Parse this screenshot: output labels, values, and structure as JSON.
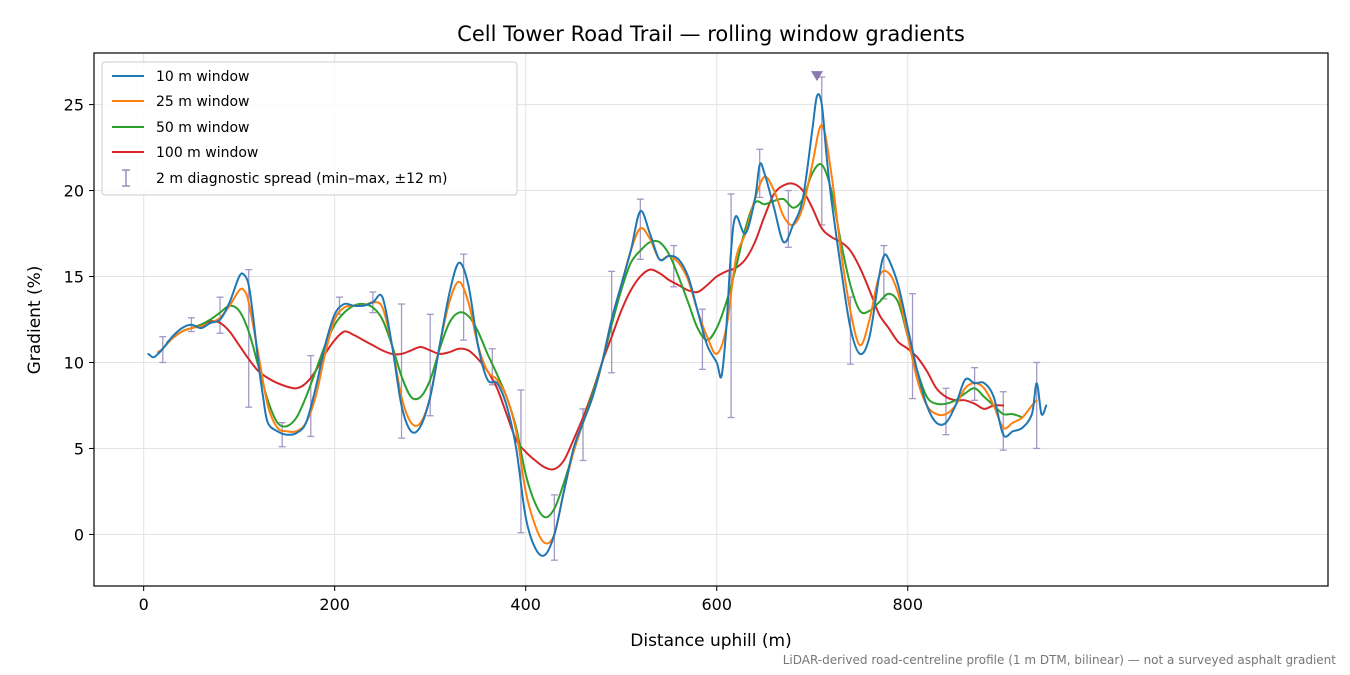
{
  "chart_data": {
    "type": "line",
    "title": "Cell Tower Road Trail — rolling window gradients",
    "xlabel": "Distance uphill (m)",
    "ylabel": "Gradient (%)",
    "footnote": "LiDAR-derived road-centreline profile (1 m DTM, bilinear) — not a surveyed asphalt gradient",
    "xlim": [
      -52,
      1240
    ],
    "ylim": [
      -3,
      28
    ],
    "xticks": [
      0,
      200,
      400,
      600,
      800
    ],
    "yticks": [
      0,
      5,
      10,
      15,
      20,
      25
    ],
    "grid": true,
    "legend_position": "top-left",
    "series": [
      {
        "name": "10 m window",
        "color": "#1f77b4",
        "x": [
          5,
          10,
          15,
          20,
          30,
          40,
          50,
          60,
          70,
          80,
          90,
          100,
          105,
          110,
          115,
          120,
          125,
          130,
          140,
          150,
          160,
          170,
          180,
          190,
          200,
          210,
          220,
          230,
          240,
          250,
          260,
          270,
          280,
          290,
          300,
          310,
          320,
          330,
          340,
          350,
          360,
          370,
          380,
          390,
          400,
          410,
          420,
          430,
          440,
          450,
          460,
          470,
          480,
          490,
          500,
          510,
          520,
          530,
          540,
          550,
          560,
          570,
          580,
          590,
          600,
          605,
          610,
          615,
          620,
          630,
          640,
          645,
          650,
          660,
          670,
          680,
          690,
          700,
          705,
          710,
          715,
          720,
          730,
          740,
          750,
          760,
          770,
          775,
          780,
          790,
          800,
          810,
          820,
          830,
          840,
          850,
          860,
          870,
          880,
          890,
          900,
          910,
          920,
          930,
          935,
          940,
          945
        ],
        "y": [
          10.5,
          10.3,
          10.5,
          10.8,
          11.5,
          12.0,
          12.2,
          12.0,
          12.3,
          12.5,
          13.5,
          15.0,
          15.1,
          14.5,
          12.5,
          10.0,
          8.0,
          6.5,
          6.0,
          5.8,
          5.9,
          6.5,
          8.5,
          11.0,
          12.8,
          13.4,
          13.3,
          13.3,
          13.5,
          13.8,
          11.0,
          7.5,
          6.0,
          6.3,
          8.0,
          11.0,
          14.0,
          15.8,
          14.5,
          11.0,
          9.0,
          8.8,
          7.5,
          5.0,
          1.0,
          -0.8,
          -1.2,
          0.0,
          2.5,
          5.0,
          6.5,
          8.0,
          10.0,
          12.5,
          14.5,
          16.5,
          18.8,
          17.5,
          16.0,
          16.2,
          16.0,
          15.0,
          13.0,
          11.0,
          10.0,
          9.2,
          12.0,
          16.5,
          18.5,
          17.5,
          19.5,
          21.5,
          21.0,
          19.0,
          17.0,
          18.0,
          19.5,
          23.5,
          25.5,
          25.0,
          22.0,
          19.5,
          15.5,
          12.0,
          10.5,
          11.5,
          15.0,
          16.2,
          16.0,
          14.5,
          12.0,
          9.5,
          7.5,
          6.5,
          6.5,
          7.5,
          9.0,
          8.8,
          8.8,
          8.0,
          5.8,
          6.0,
          6.2,
          7.0,
          8.8,
          7.0,
          7.5
        ]
      },
      {
        "name": "25 m window",
        "color": "#ff7f0e",
        "x": [
          15,
          20,
          30,
          40,
          50,
          60,
          70,
          80,
          90,
          100,
          105,
          110,
          120,
          130,
          140,
          150,
          160,
          170,
          180,
          190,
          200,
          210,
          220,
          230,
          240,
          250,
          260,
          270,
          280,
          290,
          300,
          310,
          320,
          330,
          340,
          350,
          360,
          370,
          380,
          390,
          400,
          410,
          420,
          430,
          440,
          450,
          460,
          470,
          480,
          490,
          500,
          510,
          520,
          530,
          540,
          550,
          560,
          570,
          580,
          590,
          600,
          610,
          620,
          630,
          640,
          650,
          660,
          670,
          680,
          690,
          700,
          710,
          720,
          730,
          740,
          750,
          760,
          770,
          780,
          790,
          800,
          810,
          820,
          830,
          840,
          850,
          860,
          870,
          880,
          890,
          900,
          910,
          920,
          930,
          935
        ],
        "y": [
          10.6,
          10.8,
          11.4,
          11.8,
          12.0,
          12.1,
          12.3,
          12.6,
          13.3,
          14.2,
          14.2,
          13.5,
          10.5,
          7.5,
          6.2,
          6.0,
          6.0,
          6.5,
          8.0,
          10.5,
          12.5,
          13.2,
          13.3,
          13.3,
          13.5,
          13.2,
          11.0,
          8.0,
          6.5,
          6.5,
          8.0,
          11.0,
          13.5,
          14.7,
          13.5,
          11.0,
          9.5,
          9.0,
          8.0,
          6.0,
          2.5,
          0.5,
          -0.5,
          0.0,
          2.5,
          4.8,
          6.5,
          8.0,
          10.0,
          12.5,
          14.5,
          16.5,
          17.8,
          17.2,
          16.0,
          16.2,
          15.8,
          14.8,
          13.0,
          11.5,
          10.5,
          12.0,
          16.0,
          17.5,
          19.5,
          20.8,
          20.0,
          18.5,
          18.0,
          19.0,
          21.5,
          23.8,
          21.0,
          16.5,
          13.0,
          11.0,
          12.5,
          15.0,
          15.2,
          14.0,
          11.5,
          9.0,
          7.5,
          7.0,
          7.0,
          7.5,
          8.5,
          8.8,
          8.5,
          7.5,
          6.2,
          6.5,
          6.8,
          7.5,
          7.8
        ]
      },
      {
        "name": "50 m window",
        "color": "#2ca02c",
        "x": [
          25,
          30,
          40,
          50,
          60,
          70,
          80,
          90,
          100,
          110,
          120,
          130,
          140,
          150,
          160,
          170,
          180,
          190,
          200,
          210,
          220,
          230,
          240,
          250,
          260,
          270,
          280,
          290,
          300,
          310,
          320,
          330,
          340,
          350,
          360,
          370,
          380,
          390,
          400,
          410,
          420,
          430,
          440,
          450,
          460,
          470,
          480,
          490,
          500,
          510,
          520,
          530,
          540,
          550,
          560,
          570,
          580,
          590,
          600,
          610,
          620,
          630,
          640,
          650,
          660,
          670,
          680,
          690,
          700,
          710,
          720,
          730,
          740,
          750,
          760,
          770,
          780,
          790,
          800,
          810,
          820,
          830,
          840,
          850,
          860,
          870,
          880,
          890,
          900,
          910,
          920
        ],
        "y": [
          11.2,
          11.4,
          11.8,
          12.0,
          12.2,
          12.5,
          12.9,
          13.3,
          13.0,
          11.8,
          9.8,
          7.8,
          6.5,
          6.3,
          6.8,
          8.0,
          9.5,
          11.0,
          12.2,
          12.9,
          13.3,
          13.4,
          13.2,
          12.5,
          11.0,
          9.2,
          8.0,
          8.0,
          9.0,
          10.8,
          12.3,
          12.9,
          12.7,
          11.8,
          10.5,
          9.3,
          8.0,
          6.2,
          3.5,
          1.8,
          1.0,
          1.5,
          3.0,
          4.8,
          6.5,
          8.2,
          10.0,
          12.2,
          14.2,
          15.8,
          16.5,
          17.0,
          17.0,
          16.3,
          15.0,
          13.5,
          12.0,
          11.3,
          12.0,
          13.5,
          15.5,
          17.8,
          19.3,
          19.2,
          19.4,
          19.5,
          19.0,
          19.5,
          21.0,
          21.5,
          20.0,
          17.0,
          14.5,
          13.0,
          13.0,
          13.5,
          14.0,
          13.5,
          11.5,
          9.5,
          8.0,
          7.6,
          7.6,
          7.8,
          8.2,
          8.5,
          8.0,
          7.5,
          7.0,
          7.0,
          6.8
        ]
      },
      {
        "name": "100 m window",
        "color": "#d62728",
        "x": [
          50,
          60,
          70,
          80,
          90,
          100,
          110,
          120,
          130,
          140,
          150,
          160,
          170,
          180,
          190,
          200,
          210,
          220,
          230,
          240,
          250,
          260,
          270,
          280,
          290,
          300,
          310,
          320,
          330,
          340,
          350,
          360,
          370,
          380,
          390,
          400,
          410,
          420,
          430,
          440,
          450,
          460,
          470,
          480,
          490,
          500,
          510,
          520,
          530,
          540,
          550,
          560,
          570,
          580,
          590,
          600,
          610,
          620,
          630,
          640,
          650,
          660,
          670,
          680,
          690,
          700,
          710,
          720,
          730,
          740,
          750,
          760,
          770,
          780,
          790,
          800,
          810,
          820,
          830,
          840,
          850,
          860,
          870,
          880,
          890,
          900
        ],
        "y": [
          12.0,
          12.2,
          12.4,
          12.3,
          11.8,
          11.0,
          10.2,
          9.5,
          9.1,
          8.8,
          8.6,
          8.5,
          8.8,
          9.5,
          10.5,
          11.3,
          11.8,
          11.6,
          11.3,
          11.0,
          10.7,
          10.5,
          10.5,
          10.7,
          10.9,
          10.7,
          10.5,
          10.6,
          10.8,
          10.7,
          10.2,
          9.5,
          8.5,
          7.0,
          5.5,
          4.8,
          4.3,
          3.9,
          3.8,
          4.3,
          5.5,
          6.8,
          8.3,
          10.0,
          11.5,
          13.0,
          14.2,
          15.0,
          15.4,
          15.2,
          14.8,
          14.5,
          14.2,
          14.1,
          14.5,
          15.0,
          15.3,
          15.5,
          16.0,
          17.0,
          18.5,
          19.8,
          20.3,
          20.4,
          20.0,
          19.0,
          17.8,
          17.3,
          17.0,
          16.5,
          15.5,
          14.2,
          12.8,
          12.0,
          11.2,
          10.8,
          10.3,
          9.5,
          8.5,
          8.0,
          7.8,
          7.8,
          7.6,
          7.3,
          7.5,
          7.5
        ]
      }
    ],
    "diagnostic_spread": {
      "name": "2 m diagnostic spread (min–max, ±12 m)",
      "color": "#9a8ebf",
      "bars": [
        {
          "x": 20,
          "low": 10.0,
          "high": 11.5
        },
        {
          "x": 50,
          "low": 11.8,
          "high": 12.6
        },
        {
          "x": 80,
          "low": 11.7,
          "high": 13.8
        },
        {
          "x": 110,
          "low": 7.4,
          "high": 15.4
        },
        {
          "x": 145,
          "low": 5.1,
          "high": 6.5
        },
        {
          "x": 175,
          "low": 5.7,
          "high": 10.4
        },
        {
          "x": 205,
          "low": 12.8,
          "high": 13.8
        },
        {
          "x": 240,
          "low": 12.9,
          "high": 14.1
        },
        {
          "x": 270,
          "low": 5.6,
          "high": 13.4
        },
        {
          "x": 300,
          "low": 6.9,
          "high": 12.8
        },
        {
          "x": 335,
          "low": 11.3,
          "high": 16.3
        },
        {
          "x": 365,
          "low": 8.7,
          "high": 10.8
        },
        {
          "x": 395,
          "low": 0.1,
          "high": 8.4
        },
        {
          "x": 430,
          "low": -1.5,
          "high": 2.3
        },
        {
          "x": 460,
          "low": 4.3,
          "high": 7.3
        },
        {
          "x": 490,
          "low": 9.4,
          "high": 15.3
        },
        {
          "x": 520,
          "low": 16.0,
          "high": 19.5
        },
        {
          "x": 555,
          "low": 14.4,
          "high": 16.8
        },
        {
          "x": 585,
          "low": 9.6,
          "high": 13.1
        },
        {
          "x": 615,
          "low": 6.8,
          "high": 19.8
        },
        {
          "x": 645,
          "low": 19.6,
          "high": 22.4
        },
        {
          "x": 675,
          "low": 16.7,
          "high": 20.0
        },
        {
          "x": 710,
          "low": 18.0,
          "high": 26.6
        },
        {
          "x": 740,
          "low": 9.9,
          "high": 13.8
        },
        {
          "x": 775,
          "low": 13.7,
          "high": 16.8
        },
        {
          "x": 805,
          "low": 7.9,
          "high": 14.0
        },
        {
          "x": 840,
          "low": 5.8,
          "high": 8.5
        },
        {
          "x": 870,
          "low": 7.8,
          "high": 9.7
        },
        {
          "x": 900,
          "low": 4.9,
          "high": 8.3
        },
        {
          "x": 935,
          "low": 5.0,
          "high": 10.0
        }
      ],
      "peak_marker": {
        "x": 705,
        "y": 26.6
      }
    }
  }
}
